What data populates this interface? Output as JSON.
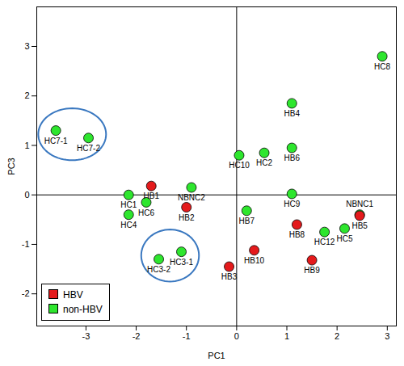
{
  "chart_data": {
    "type": "scatter",
    "x_label": "PC1",
    "y_label": "PC3",
    "xlim": [
      -3.98,
      3.18
    ],
    "ylim": [
      -2.65,
      3.8
    ],
    "xticks": [
      -3,
      -2,
      -1,
      0,
      1,
      2,
      3
    ],
    "yticks": [
      -2,
      -1,
      0,
      1,
      2,
      3
    ],
    "legend": "bottom-left",
    "marker": "circle",
    "series": [
      {
        "name": "HBV",
        "color": "#e41a1c",
        "labels": [
          "HB1",
          "HB2",
          "HB3",
          "HB5",
          "HB8",
          "HB9",
          "HB10"
        ],
        "x": [
          -1.7,
          -1.0,
          -0.15,
          2.45,
          1.2,
          1.5,
          0.35
        ],
        "y": [
          0.18,
          -0.25,
          -1.45,
          -0.42,
          -0.6,
          -1.32,
          -1.12
        ]
      },
      {
        "name": "non-HBV",
        "color": "#2ee62e",
        "labels": [
          "HC7-1",
          "HC7-2",
          "HC8",
          "HB4",
          "HB6",
          "HC10",
          "HC2",
          "HC9",
          "HC1",
          "HC6",
          "HC4",
          "NBNC2",
          "HB7",
          "NBNC1",
          "HC12",
          "HC5",
          "HC3-2",
          "HC3-1"
        ],
        "x": [
          -3.6,
          -2.95,
          2.9,
          1.1,
          1.1,
          0.05,
          0.55,
          1.1,
          -2.15,
          -1.8,
          -2.15,
          -0.9,
          0.2,
          2.45,
          1.75,
          2.15,
          -1.55,
          -1.1
        ],
        "y": [
          1.3,
          1.15,
          2.8,
          1.85,
          0.95,
          0.8,
          0.85,
          0.02,
          0.0,
          -0.15,
          -0.4,
          0.15,
          -0.32,
          -0.4,
          -0.75,
          -0.68,
          -1.3,
          -1.15
        ]
      }
    ],
    "circled": [
      [
        "HC7-1",
        "HC7-2"
      ],
      [
        "HC3-2",
        "HC3-1"
      ]
    ]
  }
}
